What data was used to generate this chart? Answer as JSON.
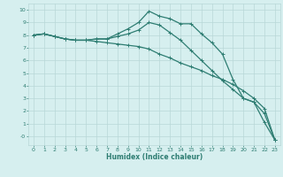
{
  "xlabel": "Humidex (Indice chaleur)",
  "xlim": [
    -0.5,
    23.5
  ],
  "ylim": [
    -0.7,
    10.5
  ],
  "xticks": [
    0,
    1,
    2,
    3,
    4,
    5,
    6,
    7,
    8,
    9,
    10,
    11,
    12,
    13,
    14,
    15,
    16,
    17,
    18,
    19,
    20,
    21,
    22,
    23
  ],
  "yticks": [
    0,
    1,
    2,
    3,
    4,
    5,
    6,
    7,
    8,
    9,
    10
  ],
  "ytick_labels": [
    "-0",
    "1",
    "2",
    "3",
    "4",
    "5",
    "6",
    "7",
    "8",
    "9",
    "10"
  ],
  "bg_color": "#d6efef",
  "grid_color": "#b8d8d8",
  "line_color": "#2e7d72",
  "line_width": 0.9,
  "marker": "+",
  "marker_size": 3.5,
  "curves": [
    {
      "x": [
        0,
        1,
        2,
        3,
        4,
        5,
        6,
        7,
        8,
        9,
        10,
        11,
        12,
        13,
        14,
        15,
        16,
        17,
        18,
        19,
        20,
        21,
        22,
        23
      ],
      "y": [
        8.0,
        8.1,
        7.9,
        7.7,
        7.6,
        7.6,
        7.7,
        7.7,
        8.1,
        8.5,
        9.0,
        9.9,
        9.5,
        9.3,
        8.9,
        8.9,
        8.1,
        7.4,
        6.5,
        4.5,
        3.0,
        2.7,
        1.1,
        -0.3
      ]
    },
    {
      "x": [
        0,
        1,
        2,
        3,
        4,
        5,
        6,
        7,
        8,
        9,
        10,
        11,
        12,
        13,
        14,
        15,
        16,
        17,
        18,
        19,
        20,
        21,
        22,
        23
      ],
      "y": [
        8.0,
        8.1,
        7.9,
        7.7,
        7.6,
        7.6,
        7.7,
        7.7,
        7.9,
        8.1,
        8.4,
        9.0,
        8.8,
        8.2,
        7.6,
        6.8,
        6.0,
        5.2,
        4.4,
        3.7,
        3.0,
        2.7,
        1.8,
        -0.3
      ]
    },
    {
      "x": [
        0,
        1,
        2,
        3,
        4,
        5,
        6,
        7,
        8,
        9,
        10,
        11,
        12,
        13,
        14,
        15,
        16,
        17,
        18,
        19,
        20,
        21,
        22,
        23
      ],
      "y": [
        8.0,
        8.1,
        7.9,
        7.7,
        7.6,
        7.6,
        7.5,
        7.4,
        7.3,
        7.2,
        7.1,
        6.9,
        6.5,
        6.2,
        5.8,
        5.5,
        5.2,
        4.8,
        4.5,
        4.1,
        3.6,
        3.0,
        2.2,
        -0.3
      ]
    }
  ]
}
